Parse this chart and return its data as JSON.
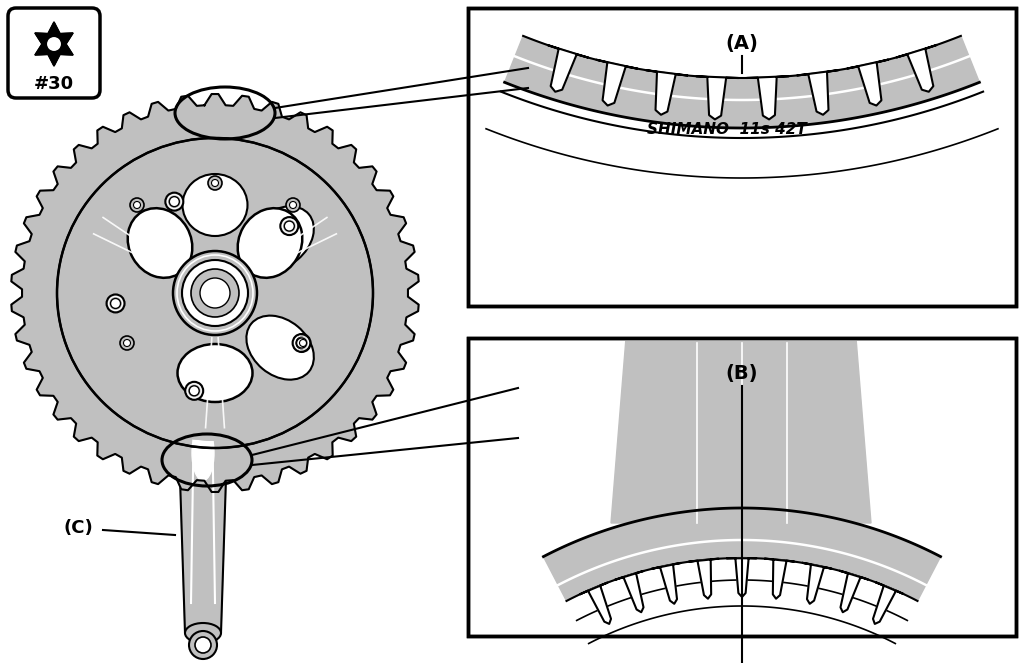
{
  "bg_color": "#ffffff",
  "gear_color": "#c0c0c0",
  "gear_outline": "#000000",
  "line_color": "#000000",
  "white_line": "#ffffff",
  "box_bg": "#ffffff",
  "label_A": "(A)",
  "label_B": "(B)",
  "label_C": "(C)",
  "shimano_text": "SHIMANO  11s 42T",
  "torx_label": "#30",
  "figsize": [
    10.24,
    6.63
  ],
  "dpi": 100
}
